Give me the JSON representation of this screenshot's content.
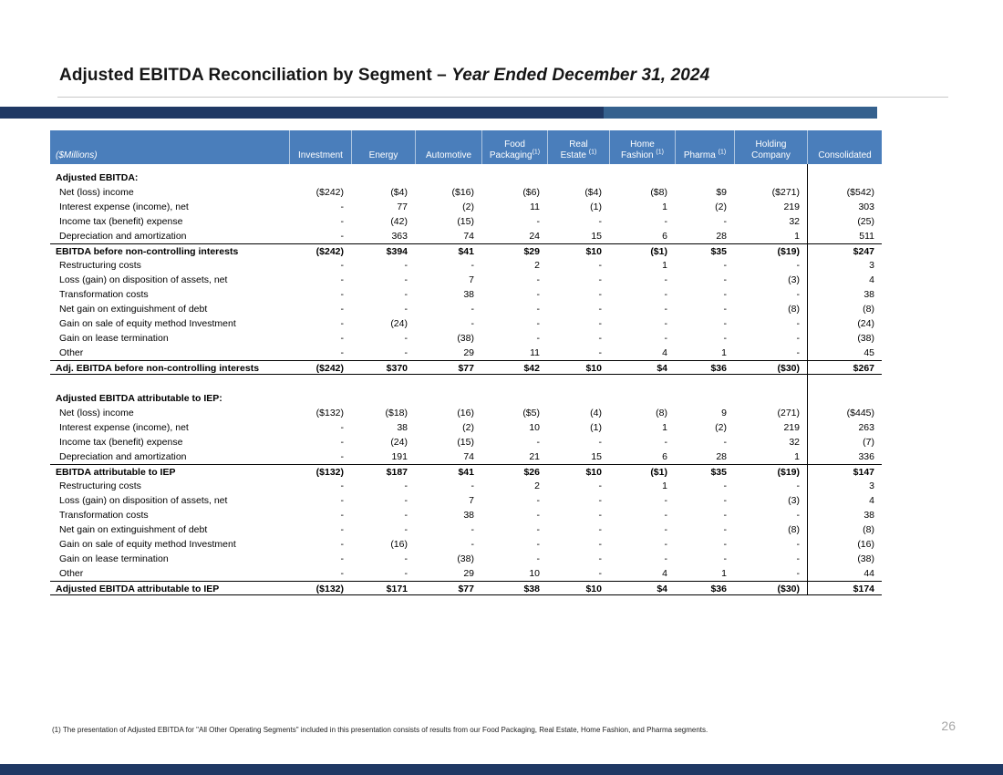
{
  "title": {
    "main": "Adjusted EBITDA Reconciliation by Segment – ",
    "emph": "Year Ended December 31, 2024"
  },
  "page_number": "26",
  "footnote": "(1) The presentation of Adjusted EBITDA for \"All Other Operating Segments\" included in this presentation consists of results from our Food Packaging, Real Estate, Home Fashion, and Pharma segments.",
  "colors": {
    "header_bg": "#4A7EBB",
    "accent_dark": "#1F3864",
    "accent_light": "#35618E",
    "bottom_bar": "#1F3864"
  },
  "table": {
    "unit_label": "($Millions)",
    "columns": [
      {
        "line1": "",
        "line2": "Investment",
        "sup": ""
      },
      {
        "line1": "",
        "line2": "Energy",
        "sup": ""
      },
      {
        "line1": "",
        "line2": "Automotive",
        "sup": ""
      },
      {
        "line1": "Food",
        "line2": "Packaging",
        "sup": "(1)"
      },
      {
        "line1": "Real",
        "line2": "Estate ",
        "sup": "(1)"
      },
      {
        "line1": "Home",
        "line2": "Fashion ",
        "sup": "(1)"
      },
      {
        "line1": "",
        "line2": "Pharma ",
        "sup": "(1)"
      },
      {
        "line1": "Holding",
        "line2": "Company",
        "sup": ""
      },
      {
        "line1": "",
        "line2": "Consolidated",
        "sup": ""
      }
    ],
    "rows": [
      {
        "style": "spacer_sm",
        "label": "",
        "values": []
      },
      {
        "style": "section",
        "label": "Adjusted EBITDA:",
        "values": []
      },
      {
        "style": "data",
        "label": "Net (loss) income",
        "values": [
          "($242)",
          "($4)",
          "($16)",
          "($6)",
          "($4)",
          "($8)",
          "$9",
          "($271)",
          "($542)"
        ]
      },
      {
        "style": "data",
        "label": "Interest expense (income), net",
        "values": [
          "-",
          "77",
          "(2)",
          "11",
          "(1)",
          "1",
          "(2)",
          "219",
          "303"
        ]
      },
      {
        "style": "data",
        "label": "Income tax (benefit) expense",
        "values": [
          "-",
          "(42)",
          "(15)",
          "-",
          "-",
          "-",
          "-",
          "32",
          "(25)"
        ]
      },
      {
        "style": "data",
        "label": "Depreciation and amortization",
        "values": [
          "-",
          "363",
          "74",
          "24",
          "15",
          "6",
          "28",
          "1",
          "511"
        ]
      },
      {
        "style": "subtotal",
        "label": "EBITDA before non-controlling interests",
        "values": [
          "($242)",
          "$394",
          "$41",
          "$29",
          "$10",
          "($1)",
          "$35",
          "($19)",
          "$247"
        ]
      },
      {
        "style": "data",
        "label": "Restructuring costs",
        "values": [
          "-",
          "-",
          "-",
          "2",
          "-",
          "1",
          "-",
          "-",
          "3"
        ]
      },
      {
        "style": "data",
        "label": "Loss (gain) on disposition of assets, net",
        "values": [
          "-",
          "-",
          "7",
          "-",
          "-",
          "-",
          "-",
          "(3)",
          "4"
        ]
      },
      {
        "style": "data",
        "label": "Transformation costs",
        "values": [
          "-",
          "-",
          "38",
          "-",
          "-",
          "-",
          "-",
          "-",
          "38"
        ]
      },
      {
        "style": "data",
        "label": "Net gain on extinguishment of debt",
        "values": [
          "-",
          "-",
          "-",
          "-",
          "-",
          "-",
          "-",
          "(8)",
          "(8)"
        ]
      },
      {
        "style": "data",
        "label": "Gain on sale of equity method Investment",
        "values": [
          "-",
          "(24)",
          "-",
          "-",
          "-",
          "-",
          "-",
          "-",
          "(24)"
        ]
      },
      {
        "style": "data",
        "label": "Gain on lease termination",
        "values": [
          "-",
          "-",
          "(38)",
          "-",
          "-",
          "-",
          "-",
          "-",
          "(38)"
        ]
      },
      {
        "style": "data",
        "label": "Other",
        "values": [
          "-",
          "-",
          "29",
          "11",
          "-",
          "4",
          "1",
          "-",
          "45"
        ]
      },
      {
        "style": "total",
        "label": "Adj. EBITDA before non-controlling interests",
        "values": [
          "($242)",
          "$370",
          "$77",
          "$42",
          "$10",
          "$4",
          "$36",
          "($30)",
          "$267"
        ]
      },
      {
        "style": "spacer",
        "label": "",
        "values": []
      },
      {
        "style": "section",
        "label": "Adjusted EBITDA attributable to IEP:",
        "values": []
      },
      {
        "style": "data",
        "label": "Net (loss) income",
        "values": [
          "($132)",
          "($18)",
          "(16)",
          "($5)",
          "(4)",
          "(8)",
          "9",
          "(271)",
          "($445)"
        ]
      },
      {
        "style": "data",
        "label": "Interest expense (income), net",
        "values": [
          "-",
          "38",
          "(2)",
          "10",
          "(1)",
          "1",
          "(2)",
          "219",
          "263"
        ]
      },
      {
        "style": "data",
        "label": "Income tax (benefit) expense",
        "values": [
          "-",
          "(24)",
          "(15)",
          "-",
          "-",
          "-",
          "-",
          "32",
          "(7)"
        ]
      },
      {
        "style": "data",
        "label": "Depreciation and amortization",
        "values": [
          "-",
          "191",
          "74",
          "21",
          "15",
          "6",
          "28",
          "1",
          "336"
        ]
      },
      {
        "style": "subtotal",
        "label": "EBITDA attributable to IEP",
        "values": [
          "($132)",
          "$187",
          "$41",
          "$26",
          "$10",
          "($1)",
          "$35",
          "($19)",
          "$147"
        ]
      },
      {
        "style": "data",
        "label": "Restructuring costs",
        "values": [
          "-",
          "-",
          "-",
          "2",
          "-",
          "1",
          "-",
          "-",
          "3"
        ]
      },
      {
        "style": "data",
        "label": "Loss (gain) on disposition of assets, net",
        "values": [
          "-",
          "-",
          "7",
          "-",
          "-",
          "-",
          "-",
          "(3)",
          "4"
        ]
      },
      {
        "style": "data",
        "label": "Transformation costs",
        "values": [
          "-",
          "-",
          "38",
          "-",
          "-",
          "-",
          "-",
          "-",
          "38"
        ]
      },
      {
        "style": "data",
        "label": "Net gain on extinguishment of debt",
        "values": [
          "-",
          "-",
          "-",
          "-",
          "-",
          "-",
          "-",
          "(8)",
          "(8)"
        ]
      },
      {
        "style": "data",
        "label": "Gain on sale of equity method Investment",
        "values": [
          "-",
          "(16)",
          "-",
          "-",
          "-",
          "-",
          "-",
          "-",
          "(16)"
        ]
      },
      {
        "style": "data",
        "label": "Gain on lease termination",
        "values": [
          "-",
          "-",
          "(38)",
          "-",
          "-",
          "-",
          "-",
          "-",
          "(38)"
        ]
      },
      {
        "style": "data",
        "label": "Other",
        "values": [
          "-",
          "-",
          "29",
          "10",
          "-",
          "4",
          "1",
          "-",
          "44"
        ]
      },
      {
        "style": "total",
        "label": "Adjusted EBITDA attributable to IEP",
        "values": [
          "($132)",
          "$171",
          "$77",
          "$38",
          "$10",
          "$4",
          "$36",
          "($30)",
          "$174"
        ]
      }
    ]
  }
}
